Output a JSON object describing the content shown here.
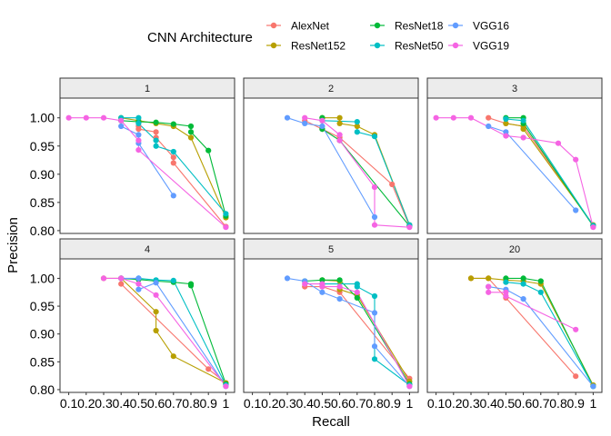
{
  "chart_data": {
    "type": "line",
    "facet_variable": "",
    "facets": [
      "1",
      "2",
      "3",
      "4",
      "5",
      "20"
    ],
    "xlabel": "Recall",
    "ylabel": "Precision",
    "xlim": [
      0.05,
      1.05
    ],
    "ylim": [
      0.795,
      1.035
    ],
    "x_ticks": [
      0.1,
      0.2,
      0.3,
      0.4,
      0.5,
      0.6,
      0.7,
      0.8,
      0.9,
      1
    ],
    "x_tick_labels": [
      "0.1",
      "0.2",
      "0.3",
      "0.4",
      "0.5",
      "0.6",
      "0.7",
      "0.8",
      "0.9",
      "1"
    ],
    "y_ticks": [
      0.8,
      0.85,
      0.9,
      0.95,
      1.0
    ],
    "y_tick_labels": [
      "0.80",
      "0.85",
      "0.90",
      "0.95",
      "1.00"
    ],
    "grid": false,
    "legend": {
      "title": "CNN Architecture",
      "placement": "top",
      "entries": [
        "AlexNet",
        "ResNet152",
        "ResNet18",
        "ResNet50",
        "VGG16",
        "VGG19"
      ]
    },
    "colors": {
      "AlexNet": "#F8766D",
      "ResNet152": "#B79F00",
      "ResNet18": "#00BA38",
      "ResNet50": "#00BFC4",
      "VGG16": "#619CFF",
      "VGG19": "#F564E3"
    },
    "panels": [
      {
        "facet": "1",
        "series": [
          {
            "name": "AlexNet",
            "points": [
              [
                0.5,
                0.985
              ],
              [
                0.5,
                0.98
              ],
              [
                0.6,
                0.975
              ],
              [
                0.6,
                0.965
              ],
              [
                0.7,
                0.93
              ],
              [
                0.7,
                0.92
              ],
              [
                1.0,
                0.807
              ]
            ]
          },
          {
            "name": "ResNet152",
            "points": [
              [
                0.4,
                1.0
              ],
              [
                0.5,
                0.995
              ],
              [
                0.6,
                0.99
              ],
              [
                0.7,
                0.985
              ],
              [
                0.8,
                0.965
              ],
              [
                1.0,
                0.823
              ]
            ]
          },
          {
            "name": "ResNet18",
            "points": [
              [
                0.4,
                0.995
              ],
              [
                0.5,
                0.993
              ],
              [
                0.6,
                0.992
              ],
              [
                0.7,
                0.989
              ],
              [
                0.8,
                0.985
              ],
              [
                0.8,
                0.975
              ],
              [
                0.9,
                0.942
              ],
              [
                1.0,
                0.826
              ]
            ]
          },
          {
            "name": "ResNet50",
            "points": [
              [
                0.4,
                1.0
              ],
              [
                0.5,
                1.0
              ],
              [
                0.5,
                0.99
              ],
              [
                0.6,
                0.96
              ],
              [
                0.6,
                0.95
              ],
              [
                0.7,
                0.94
              ],
              [
                1.0,
                0.83
              ]
            ]
          },
          {
            "name": "VGG16",
            "points": [
              [
                0.4,
                0.985
              ],
              [
                0.5,
                0.97
              ],
              [
                0.5,
                0.955
              ],
              [
                0.7,
                0.862
              ]
            ]
          },
          {
            "name": "VGG19",
            "points": [
              [
                0.1,
                1.0
              ],
              [
                0.2,
                1.0
              ],
              [
                0.3,
                1.0
              ],
              [
                0.4,
                0.995
              ],
              [
                0.5,
                0.96
              ],
              [
                0.5,
                0.943
              ],
              [
                1.0,
                0.806
              ]
            ]
          }
        ]
      },
      {
        "facet": "2",
        "series": [
          {
            "name": "AlexNet",
            "points": [
              [
                0.4,
                0.995
              ],
              [
                0.5,
                0.98
              ],
              [
                0.6,
                0.965
              ],
              [
                0.9,
                0.882
              ],
              [
                1.0,
                0.808
              ]
            ]
          },
          {
            "name": "ResNet152",
            "points": [
              [
                0.5,
                1.0
              ],
              [
                0.6,
                1.0
              ],
              [
                0.6,
                0.99
              ],
              [
                0.7,
                0.985
              ],
              [
                0.8,
                0.97
              ],
              [
                1.0,
                0.81
              ]
            ]
          },
          {
            "name": "ResNet18",
            "points": [
              [
                0.5,
                1.0
              ],
              [
                0.5,
                0.98
              ],
              [
                0.6,
                0.96
              ],
              [
                1.0,
                0.808
              ]
            ]
          },
          {
            "name": "ResNet50",
            "points": [
              [
                0.5,
                0.995
              ],
              [
                0.7,
                0.993
              ],
              [
                0.7,
                0.975
              ],
              [
                0.8,
                0.967
              ],
              [
                1.0,
                0.81
              ]
            ]
          },
          {
            "name": "VGG16",
            "points": [
              [
                0.3,
                1.0
              ],
              [
                0.4,
                0.99
              ],
              [
                0.5,
                0.985
              ],
              [
                0.8,
                0.824
              ]
            ]
          },
          {
            "name": "VGG19",
            "points": [
              [
                0.4,
                1.0
              ],
              [
                0.5,
                0.995
              ],
              [
                0.6,
                0.97
              ],
              [
                0.6,
                0.96
              ],
              [
                0.8,
                0.877
              ],
              [
                0.8,
                0.81
              ],
              [
                1.0,
                0.806
              ]
            ]
          }
        ]
      },
      {
        "facet": "3",
        "series": [
          {
            "name": "AlexNet",
            "points": [
              [
                0.4,
                1.0
              ],
              [
                0.5,
                0.99
              ],
              [
                0.6,
                0.985
              ],
              [
                1.0,
                0.81
              ]
            ]
          },
          {
            "name": "ResNet152",
            "points": [
              [
                0.5,
                0.99
              ],
              [
                0.6,
                0.985
              ],
              [
                0.6,
                0.98
              ],
              [
                1.0,
                0.81
              ]
            ]
          },
          {
            "name": "ResNet18",
            "points": [
              [
                0.5,
                1.0
              ],
              [
                0.6,
                1.0
              ],
              [
                0.6,
                0.99
              ],
              [
                1.0,
                0.808
              ]
            ]
          },
          {
            "name": "ResNet50",
            "points": [
              [
                0.5,
                0.998
              ],
              [
                0.6,
                0.995
              ],
              [
                1.0,
                0.809
              ]
            ]
          },
          {
            "name": "VGG16",
            "points": [
              [
                0.4,
                0.985
              ],
              [
                0.5,
                0.975
              ],
              [
                0.9,
                0.836
              ]
            ]
          },
          {
            "name": "VGG19",
            "points": [
              [
                0.1,
                1.0
              ],
              [
                0.2,
                1.0
              ],
              [
                0.3,
                1.0
              ],
              [
                0.5,
                0.968
              ],
              [
                0.6,
                0.965
              ],
              [
                0.8,
                0.955
              ],
              [
                0.9,
                0.926
              ],
              [
                1.0,
                0.806
              ]
            ]
          }
        ]
      },
      {
        "facet": "4",
        "series": [
          {
            "name": "AlexNet",
            "points": [
              [
                0.4,
                0.99
              ],
              [
                0.9,
                0.837
              ],
              [
                1.0,
                0.812
              ]
            ]
          },
          {
            "name": "ResNet152",
            "points": [
              [
                0.3,
                1.0
              ],
              [
                0.4,
                1.0
              ],
              [
                0.6,
                0.94
              ],
              [
                0.6,
                0.906
              ],
              [
                0.7,
                0.86
              ],
              [
                1.0,
                0.812
              ]
            ]
          },
          {
            "name": "ResNet18",
            "points": [
              [
                0.4,
                1.0
              ],
              [
                0.5,
                0.998
              ],
              [
                0.6,
                0.995
              ],
              [
                0.7,
                0.993
              ],
              [
                0.8,
                0.99
              ],
              [
                0.8,
                0.987
              ],
              [
                1.0,
                0.81
              ]
            ]
          },
          {
            "name": "ResNet50",
            "points": [
              [
                0.5,
                1.0
              ],
              [
                0.6,
                0.997
              ],
              [
                0.7,
                0.996
              ],
              [
                1.0,
                0.808
              ]
            ]
          },
          {
            "name": "VGG16",
            "points": [
              [
                0.4,
                1.0
              ],
              [
                0.5,
                1.0
              ],
              [
                0.5,
                0.98
              ],
              [
                0.6,
                0.992
              ],
              [
                1.0,
                0.806
              ]
            ]
          },
          {
            "name": "VGG19",
            "points": [
              [
                0.3,
                1.0
              ],
              [
                0.4,
                1.0
              ],
              [
                0.5,
                0.99
              ],
              [
                0.6,
                0.97
              ],
              [
                1.0,
                0.806
              ]
            ]
          }
        ]
      },
      {
        "facet": "5",
        "series": [
          {
            "name": "AlexNet",
            "points": [
              [
                0.4,
                0.985
              ],
              [
                0.5,
                0.985
              ],
              [
                0.6,
                0.975
              ],
              [
                1.0,
                0.82
              ]
            ]
          },
          {
            "name": "ResNet152",
            "points": [
              [
                0.5,
                0.997
              ],
              [
                0.6,
                0.995
              ],
              [
                0.6,
                0.98
              ],
              [
                0.7,
                0.97
              ],
              [
                1.0,
                0.815
              ]
            ]
          },
          {
            "name": "ResNet18",
            "points": [
              [
                0.4,
                0.995
              ],
              [
                0.5,
                0.997
              ],
              [
                0.6,
                0.997
              ],
              [
                0.7,
                0.965
              ],
              [
                1.0,
                0.81
              ]
            ]
          },
          {
            "name": "ResNet50",
            "points": [
              [
                0.5,
                0.99
              ],
              [
                0.7,
                0.99
              ],
              [
                0.7,
                0.985
              ],
              [
                0.8,
                0.968
              ],
              [
                0.8,
                0.855
              ],
              [
                1.0,
                0.808
              ]
            ]
          },
          {
            "name": "VGG16",
            "points": [
              [
                0.3,
                1.0
              ],
              [
                0.4,
                0.995
              ],
              [
                0.5,
                0.975
              ],
              [
                0.6,
                0.963
              ],
              [
                0.8,
                0.938
              ],
              [
                0.8,
                0.878
              ],
              [
                1.0,
                0.806
              ]
            ]
          },
          {
            "name": "VGG19",
            "points": [
              [
                0.4,
                0.99
              ],
              [
                0.5,
                0.99
              ],
              [
                0.5,
                0.985
              ],
              [
                0.6,
                0.985
              ],
              [
                0.7,
                0.975
              ],
              [
                1.0,
                0.806
              ]
            ]
          }
        ]
      },
      {
        "facet": "20",
        "series": [
          {
            "name": "AlexNet",
            "points": [
              [
                0.3,
                1.0
              ],
              [
                0.4,
                1.0
              ],
              [
                0.5,
                0.965
              ],
              [
                0.9,
                0.824
              ]
            ]
          },
          {
            "name": "ResNet152",
            "points": [
              [
                0.3,
                1.0
              ],
              [
                0.4,
                1.0
              ],
              [
                0.5,
                0.997
              ],
              [
                0.6,
                0.995
              ],
              [
                0.7,
                0.99
              ],
              [
                1.0,
                0.808
              ]
            ]
          },
          {
            "name": "ResNet18",
            "points": [
              [
                0.5,
                1.0
              ],
              [
                0.6,
                1.0
              ],
              [
                0.7,
                0.995
              ],
              [
                1.0,
                0.806
              ]
            ]
          },
          {
            "name": "ResNet50",
            "points": [
              [
                0.5,
                0.993
              ],
              [
                0.6,
                0.99
              ],
              [
                0.7,
                0.975
              ],
              [
                1.0,
                0.806
              ]
            ]
          },
          {
            "name": "VGG16",
            "points": [
              [
                0.4,
                0.985
              ],
              [
                0.5,
                0.98
              ],
              [
                0.6,
                0.963
              ],
              [
                1.0,
                0.806
              ]
            ]
          },
          {
            "name": "VGG19",
            "points": [
              [
                0.4,
                0.985
              ],
              [
                0.4,
                0.975
              ],
              [
                0.5,
                0.975
              ],
              [
                0.5,
                0.968
              ],
              [
                0.9,
                0.908
              ]
            ]
          }
        ]
      }
    ]
  }
}
